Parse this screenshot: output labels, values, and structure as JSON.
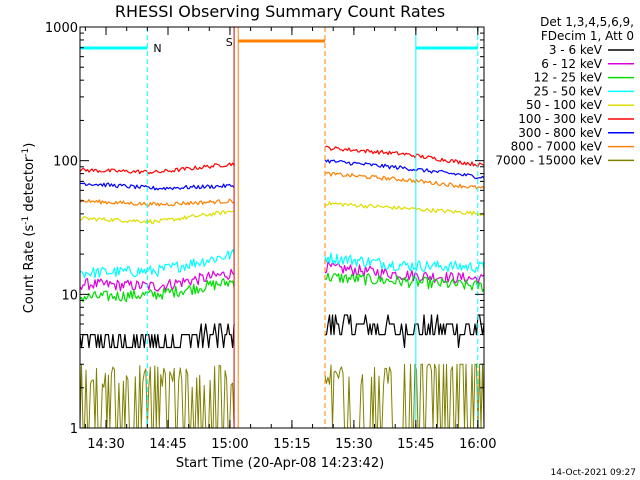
{
  "chart_data": {
    "type": "line",
    "title": "RHESSI Observing Summary Count Rates",
    "xlabel": "Start Time (20-Apr-08 14:23:42)",
    "ylabel_main": "Count Rate (s",
    "ylabel_sup1": "-1",
    "ylabel_mid": " detector",
    "ylabel_sup2": "-1",
    "ylabel_end": ")",
    "x_axis": {
      "unit": "time",
      "range": [
        "14:23:42",
        "16:01:30"
      ],
      "tick_labels": [
        "14:30",
        "14:45",
        "15:00",
        "15:15",
        "15:30",
        "15:45",
        "16:00"
      ]
    },
    "y_axis": {
      "scale": "log",
      "range": [
        1,
        1000
      ],
      "tick_labels": [
        "1000",
        "100",
        "10",
        "1"
      ]
    },
    "legend": {
      "placement": "right",
      "header_line1": "Det 1,3,4,5,6,9,",
      "header_line2": "FDecim 1, Att 0"
    },
    "series": [
      {
        "name": "3 - 6 keV",
        "color": "#000000",
        "seg1": [
          4.3,
          4.5,
          5.0
        ],
        "seg2": [
          6.0,
          5.5,
          5.5
        ]
      },
      {
        "name": "6 - 12 keV",
        "color": "#dd00dd",
        "seg1": [
          12.0,
          11.5,
          14.5
        ],
        "seg2": [
          16.0,
          14.0,
          13.0
        ]
      },
      {
        "name": "12 - 25 keV",
        "color": "#00dd00",
        "seg1": [
          9.5,
          10.0,
          12.5
        ],
        "seg2": [
          13.5,
          12.5,
          11.5
        ]
      },
      {
        "name": "25 - 50 keV",
        "color": "#00ffff",
        "seg1": [
          14.5,
          15.0,
          20.0
        ],
        "seg2": [
          19.0,
          16.5,
          16.0
        ]
      },
      {
        "name": "50 - 100 keV",
        "color": "#dddd00",
        "seg1": [
          37.0,
          35.0,
          42.0
        ],
        "seg2": [
          48.0,
          44.0,
          40.0
        ]
      },
      {
        "name": "100 - 300 keV",
        "color": "#ff0000",
        "seg1": [
          85.0,
          82.0,
          95.0
        ],
        "seg2": [
          125.0,
          112.0,
          92.0
        ]
      },
      {
        "name": "300 - 800 keV",
        "color": "#0000ff",
        "seg1": [
          68.0,
          62.0,
          65.0
        ],
        "seg2": [
          100.0,
          88.0,
          75.0
        ]
      },
      {
        "name": "800 - 7000 keV",
        "color": "#ff8000",
        "seg1": [
          50.0,
          47.0,
          50.0
        ],
        "seg2": [
          80.0,
          72.0,
          62.0
        ]
      },
      {
        "name": "7000 - 15000 keV",
        "color": "#808000",
        "seg1": [
          2.0,
          2.0,
          2.2
        ],
        "seg2": [
          2.0,
          2.6,
          2.0
        ]
      }
    ],
    "data_gaps": [
      {
        "start": "15:01",
        "end": "15:23"
      }
    ],
    "annotations": {
      "night": [
        {
          "label": "N",
          "start": "14:23:42",
          "end": "14:40",
          "color": "#00ffff"
        },
        {
          "label": "",
          "start": "15:45",
          "end": "16:00",
          "color": "#00ffff"
        }
      ],
      "saa": [
        {
          "label": "S",
          "start": "15:02",
          "end": "15:23",
          "color": "#ff8000"
        }
      ]
    }
  },
  "footer": {
    "timestamp": "14-Oct-2021 09:27"
  }
}
